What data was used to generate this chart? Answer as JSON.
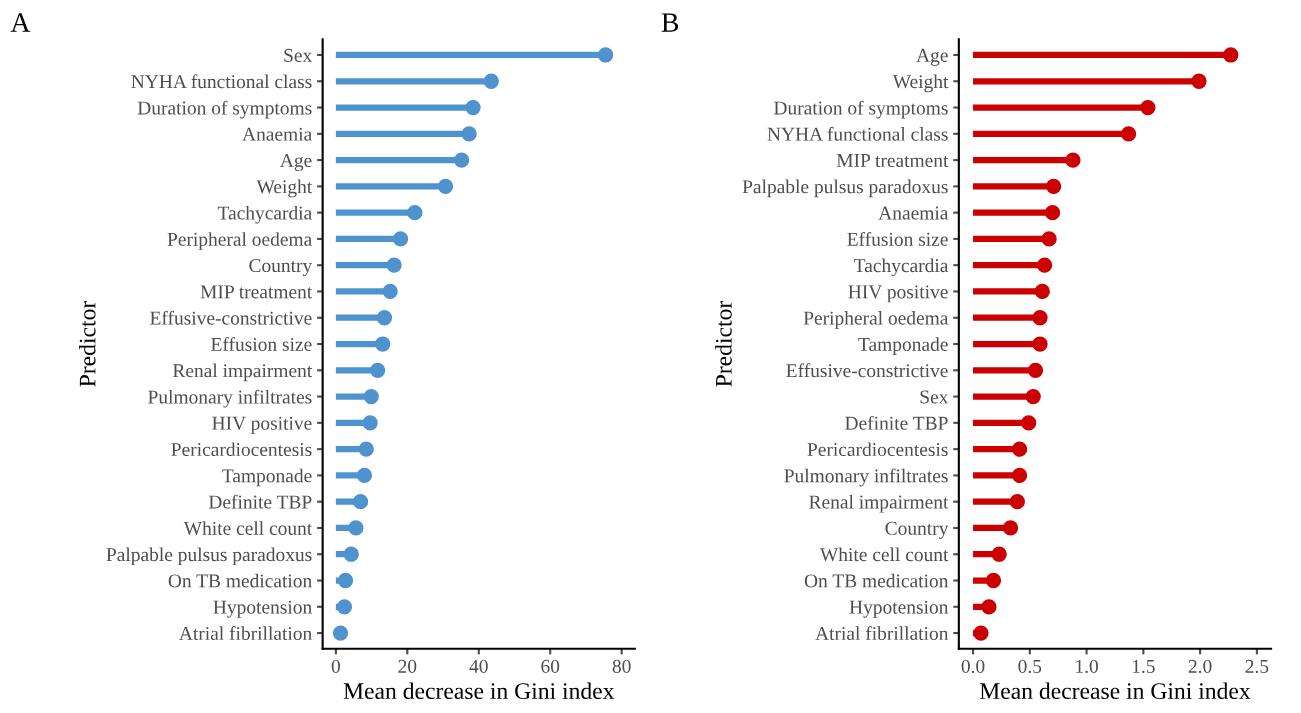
{
  "chart_data": [
    {
      "type": "lollipop",
      "title": "A",
      "orientation": "horizontal",
      "xlabel": "Mean decrease in Gini index",
      "ylabel": "Predictor",
      "categories": [
        "Sex",
        "NYHA functional class",
        "Duration of symptoms",
        "Anaemia",
        "Age",
        "Weight",
        "Tachycardia",
        "Peripheral oedema",
        "Country",
        "MIP treatment",
        "Effusive-constrictive",
        "Effusion size",
        "Renal impairment",
        "Pulmonary infiltrates",
        "HIV positive",
        "Pericardiocentesis",
        "Tamponade",
        "Definite TBP",
        "White cell count",
        "Palpable pulsus paradoxus",
        "On TB medication",
        "Hypotension",
        "Atrial fibrillation"
      ],
      "values": [
        75.5,
        43.5,
        38.4,
        37.3,
        35.2,
        30.7,
        22.1,
        18.1,
        16.3,
        15.2,
        13.6,
        13.1,
        11.7,
        9.9,
        9.6,
        8.5,
        8.0,
        6.9,
        5.6,
        4.3,
        2.7,
        2.4,
        1.3
      ],
      "color": "#4f93ce",
      "xlim": [
        -3.7,
        83.7
      ],
      "xticks": [
        0,
        20,
        40,
        60,
        80
      ],
      "marker": "circle"
    },
    {
      "type": "lollipop",
      "title": "B",
      "orientation": "horizontal",
      "xlabel": "Mean decrease in Gini index",
      "ylabel": "Predictor",
      "categories": [
        "Age",
        "Weight",
        "Duration of symptoms",
        "NYHA functional class",
        "MIP treatment",
        "Palpable pulsus paradoxus",
        "Anaemia",
        "Effusion size",
        "Tachycardia",
        "HIV positive",
        "Peripheral oedema",
        "Tamponade",
        "Effusive-constrictive",
        "Sex",
        "Definite TBP",
        "Pericardiocentesis",
        "Pulmonary infiltrates",
        "Renal impairment",
        "Country",
        "White cell count",
        "On TB medication",
        "Hypotension",
        "Atrial fibrillation"
      ],
      "values": [
        2.27,
        1.99,
        1.54,
        1.37,
        0.88,
        0.71,
        0.7,
        0.67,
        0.63,
        0.61,
        0.59,
        0.59,
        0.55,
        0.53,
        0.49,
        0.41,
        0.41,
        0.39,
        0.33,
        0.23,
        0.18,
        0.14,
        0.07
      ],
      "color": "#cc0000",
      "xlim": [
        -0.125,
        2.625
      ],
      "xticks": [
        {
          "value": 0,
          "label": "0.0"
        },
        0.5,
        {
          "value": 1,
          "label": "1.0"
        },
        1.5,
        {
          "value": 2,
          "label": "2.0"
        },
        2.5
      ],
      "marker": "circle"
    }
  ]
}
